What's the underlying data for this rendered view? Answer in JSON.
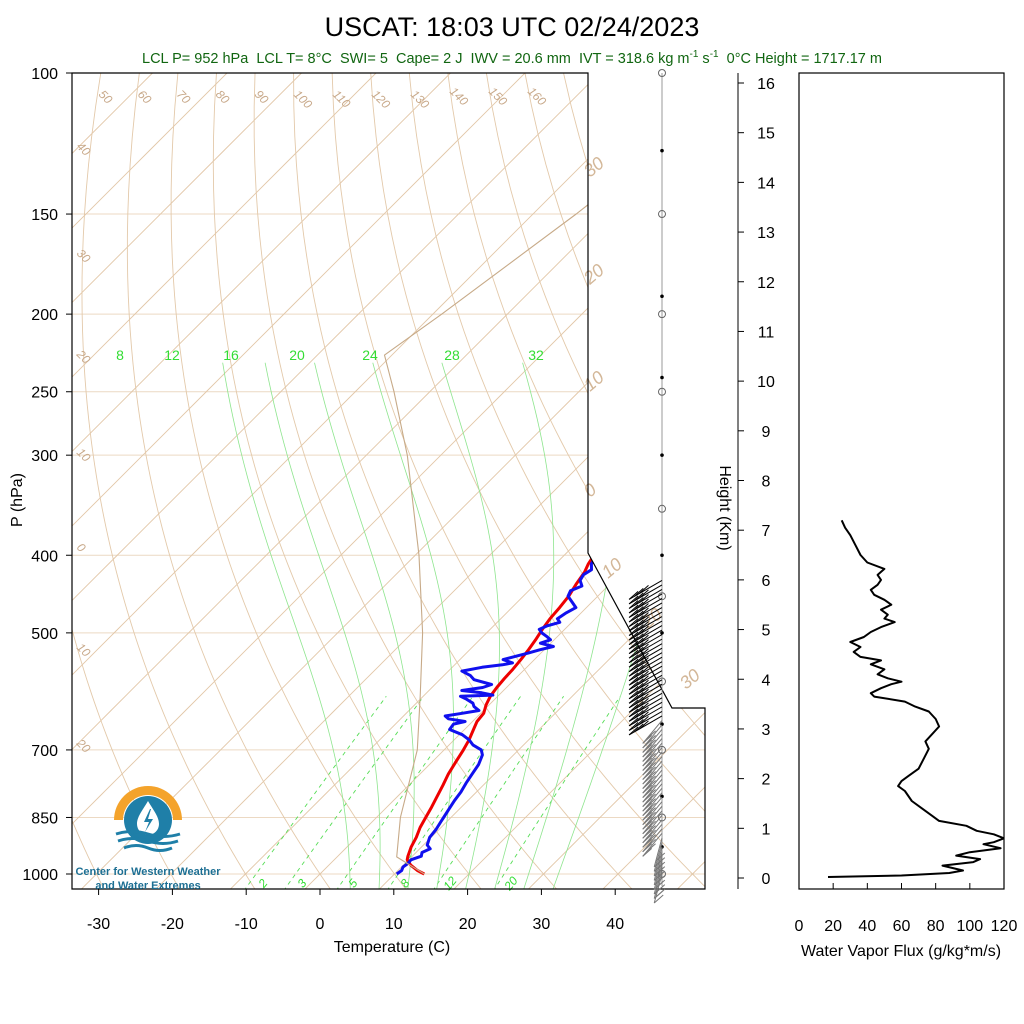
{
  "title": "USCAT: 18:03 UTC 02/24/2023",
  "subtitle": {
    "lcl_p": "LCL P= 952 hPa",
    "lcl_t": "LCL T= 8°C",
    "swi": "SWI= 5",
    "cape": "Cape= 2 J",
    "iwv": "IWV = 20.6 mm",
    "ivt": "IVT = 318.6 kg m",
    "ivt_exp1": "-1",
    "ivt_s": " s",
    "ivt_exp2": "-1",
    "zero_height": "0°C Height = 1717.17 m"
  },
  "logo": {
    "line1": "Center for Western Weather",
    "line2": "and Water Extremes",
    "colors": {
      "sun": "#f4a32b",
      "water": "#1f7fa8"
    }
  },
  "chart_data": [
    {
      "type": "line",
      "name": "skew-t",
      "xlabel": "Temperature (C)",
      "ylabel": "P (hPa)",
      "xlim": [
        -34,
        50
      ],
      "ylim": [
        1050,
        100
      ],
      "yscale": "log",
      "pressure_ticks": [
        100,
        150,
        200,
        250,
        300,
        400,
        500,
        700,
        850,
        1000
      ],
      "temperature_ticks": [
        -30,
        -20,
        -10,
        0,
        10,
        20,
        30,
        40
      ],
      "dry_adiabat_labels_left": [
        "40",
        "30",
        "20",
        "10",
        "0",
        "10",
        "20"
      ],
      "dry_adiabat_labels_top": [
        "50",
        "60",
        "70",
        "80",
        "90",
        "100",
        "110",
        "120",
        "130",
        "140",
        "150",
        "160"
      ],
      "moist_adiabat_labels": [
        "30",
        "20",
        "10",
        "0",
        "10",
        "20",
        "30"
      ],
      "mixing_ratio_labels_top": [
        "8",
        "12",
        "16",
        "20",
        "24",
        "28",
        "32"
      ],
      "mixing_ratio_labels_bottom": [
        "2",
        "3",
        "5",
        "8",
        "12",
        "20"
      ],
      "series": [
        {
          "name": "Temperature",
          "color": "#ee0000",
          "points": [
            [
              1000,
              14.0
            ],
            [
              990,
              12.6
            ],
            [
              975,
              11.0
            ],
            [
              960,
              9.8
            ],
            [
              950,
              9.4
            ],
            [
              925,
              8.6
            ],
            [
              900,
              8.0
            ],
            [
              875,
              7.2
            ],
            [
              850,
              6.6
            ],
            [
              825,
              6.0
            ],
            [
              800,
              5.3
            ],
            [
              775,
              4.6
            ],
            [
              750,
              3.8
            ],
            [
              725,
              3.2
            ],
            [
              700,
              2.6
            ],
            [
              680,
              2.0
            ],
            [
              660,
              1.2
            ],
            [
              645,
              0.6
            ],
            [
              630,
              0.4
            ],
            [
              615,
              -0.4
            ],
            [
              600,
              -1.0
            ],
            [
              585,
              -1.3
            ],
            [
              570,
              -1.5
            ],
            [
              555,
              -1.6
            ],
            [
              540,
              -1.8
            ],
            [
              525,
              -2.1
            ],
            [
              510,
              -2.5
            ],
            [
              495,
              -3.0
            ],
            [
              480,
              -3.4
            ],
            [
              465,
              -3.6
            ],
            [
              450,
              -3.9
            ],
            [
              435,
              -4.5
            ],
            [
              420,
              -5.0
            ],
            [
              410,
              -5.6
            ],
            [
              400,
              -6.0
            ]
          ]
        },
        {
          "name": "Dewpoint",
          "color": "#1010ee",
          "points": [
            [
              1000,
              10.3
            ],
            [
              990,
              10.5
            ],
            [
              980,
              10.2
            ],
            [
              970,
              10.4
            ],
            [
              960,
              10.3
            ],
            [
              950,
              11.2
            ],
            [
              940,
              10.8
            ],
            [
              930,
              11.4
            ],
            [
              920,
              10.5
            ],
            [
              900,
              9.8
            ],
            [
              880,
              9.6
            ],
            [
              860,
              9.2
            ],
            [
              850,
              9.0
            ],
            [
              830,
              8.6
            ],
            [
              810,
              8.2
            ],
            [
              790,
              7.9
            ],
            [
              770,
              7.4
            ],
            [
              750,
              7.0
            ],
            [
              730,
              6.6
            ],
            [
              710,
              5.8
            ],
            [
              700,
              5.0
            ],
            [
              690,
              3.2
            ],
            [
              680,
              2.0
            ],
            [
              670,
              0.4
            ],
            [
              660,
              -2.0
            ],
            [
              650,
              -2.2
            ],
            [
              645,
              -1.0
            ],
            [
              640,
              -3.6
            ],
            [
              635,
              -4.4
            ],
            [
              630,
              -2.5
            ],
            [
              625,
              -0.6
            ],
            [
              618,
              -1.8
            ],
            [
              612,
              -2.4
            ],
            [
              605,
              -3.8
            ],
            [
              600,
              -5.0
            ],
            [
              598,
              -0.8
            ],
            [
              594,
              -2.6
            ],
            [
              590,
              -5.6
            ],
            [
              585,
              -3.2
            ],
            [
              580,
              -2.4
            ],
            [
              572,
              -5.4
            ],
            [
              565,
              -6.5
            ],
            [
              558,
              -8.2
            ],
            [
              552,
              -6.0
            ],
            [
              548,
              -3.6
            ],
            [
              545,
              -2.5
            ],
            [
              540,
              -4.2
            ],
            [
              535,
              -3.0
            ],
            [
              530,
              -1.7
            ],
            [
              525,
              -0.6
            ],
            [
              520,
              0.8
            ],
            [
              515,
              -1.4
            ],
            [
              510,
              -0.5
            ],
            [
              505,
              -1.5
            ],
            [
              500,
              -2.6
            ],
            [
              495,
              -3.4
            ],
            [
              490,
              -2.8
            ],
            [
              485,
              -1.6
            ],
            [
              480,
              -2.4
            ],
            [
              472,
              -2.0
            ],
            [
              465,
              -1.4
            ],
            [
              458,
              -2.6
            ],
            [
              450,
              -4.0
            ],
            [
              443,
              -4.4
            ],
            [
              437,
              -3.5
            ],
            [
              430,
              -4.5
            ],
            [
              423,
              -4.8
            ],
            [
              417,
              -4.4
            ],
            [
              410,
              -5.2
            ],
            [
              405,
              -5.4
            ],
            [
              400,
              -6.0
            ]
          ]
        },
        {
          "name": "Parcel",
          "color": "#c7aa88",
          "points": [
            [
              1000,
              14.0
            ],
            [
              952,
              8.0
            ],
            [
              850,
              3.2
            ],
            [
              700,
              -3.6
            ],
            [
              600,
              -10.4
            ],
            [
              500,
              -18.6
            ],
            [
              400,
              -29.5
            ],
            [
              300,
              -44.5
            ],
            [
              250,
              -54.8
            ],
            [
              225,
              -61.0
            ],
            [
              200,
              -58.8
            ],
            [
              150,
              -54.2
            ],
            [
              100,
              -49.0
            ]
          ]
        }
      ],
      "wind_barbs": {
        "count_lower": 26,
        "count_upper": 40,
        "p_range": [
          1000,
          430
        ]
      },
      "level_markers": [
        100,
        125,
        150,
        190,
        200,
        240,
        250,
        300,
        350,
        400,
        450,
        500,
        575,
        650,
        700,
        800,
        850,
        925,
        1000
      ]
    },
    {
      "type": "line",
      "name": "water-vapor-flux",
      "xlabel": "Water Vapor Flux (g/kg*m/s)",
      "ylabel": "Height (Km)",
      "xlim": [
        0,
        120
      ],
      "ylim": [
        -0.3,
        16.5
      ],
      "x_ticks": [
        0,
        20,
        40,
        60,
        80,
        100,
        120
      ],
      "y_ticks": [
        0,
        1,
        2,
        3,
        4,
        5,
        6,
        7,
        8,
        9,
        10,
        11,
        12,
        13,
        14,
        15,
        16
      ],
      "series": [
        {
          "name": "Flux",
          "color": "#000000",
          "points": [
            [
              0.02,
              17
            ],
            [
              0.05,
              60
            ],
            [
              0.1,
              88
            ],
            [
              0.15,
              96
            ],
            [
              0.25,
              84
            ],
            [
              0.32,
              102
            ],
            [
              0.38,
              106
            ],
            [
              0.45,
              92
            ],
            [
              0.52,
              100
            ],
            [
              0.6,
              118
            ],
            [
              0.68,
              108
            ],
            [
              0.72,
              114
            ],
            [
              0.8,
              120
            ],
            [
              0.88,
              114
            ],
            [
              0.95,
              104
            ],
            [
              1.05,
              98
            ],
            [
              1.15,
              82
            ],
            [
              1.25,
              78
            ],
            [
              1.4,
              72
            ],
            [
              1.55,
              66
            ],
            [
              1.75,
              62
            ],
            [
              1.85,
              58
            ],
            [
              1.95,
              60
            ],
            [
              2.05,
              64
            ],
            [
              2.2,
              70
            ],
            [
              2.4,
              73
            ],
            [
              2.6,
              76
            ],
            [
              2.75,
              74
            ],
            [
              2.9,
              78
            ],
            [
              3.05,
              82
            ],
            [
              3.2,
              80
            ],
            [
              3.35,
              76
            ],
            [
              3.45,
              68
            ],
            [
              3.55,
              62
            ],
            [
              3.65,
              44
            ],
            [
              3.72,
              42
            ],
            [
              3.82,
              48
            ],
            [
              3.9,
              54
            ],
            [
              3.95,
              60
            ],
            [
              4.02,
              52
            ],
            [
              4.1,
              46
            ],
            [
              4.2,
              50
            ],
            [
              4.3,
              42
            ],
            [
              4.38,
              48
            ],
            [
              4.45,
              36
            ],
            [
              4.55,
              32
            ],
            [
              4.65,
              36
            ],
            [
              4.75,
              30
            ],
            [
              4.85,
              38
            ],
            [
              4.95,
              42
            ],
            [
              5.05,
              48
            ],
            [
              5.15,
              56
            ],
            [
              5.22,
              50
            ],
            [
              5.3,
              52
            ],
            [
              5.4,
              48
            ],
            [
              5.5,
              54
            ],
            [
              5.6,
              50
            ],
            [
              5.7,
              44
            ],
            [
              5.8,
              42
            ],
            [
              5.9,
              46
            ],
            [
              6.0,
              48
            ],
            [
              6.1,
              46
            ],
            [
              6.22,
              50
            ],
            [
              6.35,
              40
            ],
            [
              6.5,
              36
            ],
            [
              6.7,
              33
            ],
            [
              6.9,
              30
            ],
            [
              7.05,
              27
            ],
            [
              7.2,
              25
            ]
          ]
        }
      ]
    }
  ]
}
